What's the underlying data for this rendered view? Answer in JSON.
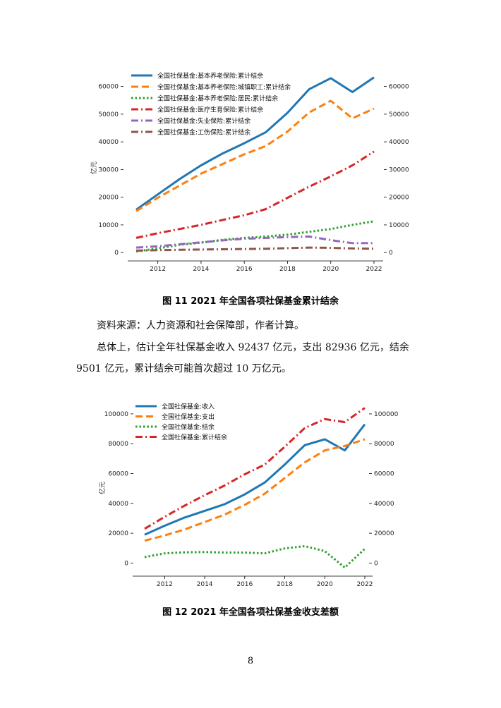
{
  "figures": [
    {
      "caption": "图 11   2021 年全国各项社保基金累计结余",
      "chart_data": {
        "type": "line",
        "ylabel": "亿元",
        "x": [
          2011,
          2012,
          2013,
          2014,
          2015,
          2016,
          2017,
          2018,
          2019,
          2020,
          2021,
          2022
        ],
        "xticks": [
          2012,
          2014,
          2016,
          2018,
          2020,
          2022
        ],
        "yticks": [
          0,
          10000,
          20000,
          30000,
          40000,
          50000,
          60000
        ],
        "ylim": [
          -2500,
          65000
        ],
        "grid": false,
        "legend_position": "top-left",
        "dual_axis_labels": true,
        "series": [
          {
            "name": "全国社保基金:基本养老保险:累计结余",
            "color": "#1f77b4",
            "dash": "solid",
            "values": [
              15500,
              21000,
              26500,
              31500,
              35800,
              39500,
              43500,
              50500,
              59000,
              63000,
              58000,
              63300
            ]
          },
          {
            "name": "全国社保基金:基本养老保险:城镇职工:累计结余",
            "color": "#ff7f0e",
            "dash": "dashed",
            "values": [
              15000,
              19800,
              24200,
              28500,
              32000,
              35500,
              38500,
              43700,
              50600,
              54800,
              48500,
              52000
            ]
          },
          {
            "name": "全国社保基金:基本养老保险:居民:累计结余",
            "color": "#2ca02c",
            "dash": "dotted",
            "values": [
              400,
              1500,
              2800,
              3600,
              4600,
              5300,
              5800,
              6500,
              7500,
              8500,
              10000,
              11300
            ]
          },
          {
            "name": "全国社保基金:医疗生育保险:累计结余",
            "color": "#d62728",
            "dash": "dashdot",
            "values": [
              5300,
              7000,
              8500,
              10000,
              11800,
              13500,
              15700,
              19800,
              23800,
              27500,
              31500,
              36500
            ]
          },
          {
            "name": "全国社保基金:失业保险:累计结余",
            "color": "#9467bd",
            "dash": "dashdot",
            "values": [
              1800,
              2300,
              3000,
              3700,
              4400,
              5000,
              5300,
              5600,
              5800,
              4500,
              3400,
              3400
            ]
          },
          {
            "name": "全国社保基金:工伤保险:累计结余",
            "color": "#8c564b",
            "dash": "dashdot",
            "values": [
              700,
              900,
              1000,
              1100,
              1200,
              1300,
              1400,
              1600,
              1800,
              1700,
              1500,
              1400
            ]
          }
        ]
      }
    },
    {
      "caption": "图 12   2021 年全国各项社保基金收支差额",
      "chart_data": {
        "type": "line",
        "ylabel": "亿元",
        "x": [
          2011,
          2012,
          2013,
          2014,
          2015,
          2016,
          2017,
          2018,
          2019,
          2020,
          2021,
          2022
        ],
        "xticks": [
          2012,
          2014,
          2016,
          2018,
          2020,
          2022
        ],
        "yticks": [
          0,
          20000,
          40000,
          60000,
          80000,
          100000
        ],
        "ylim": [
          -5000,
          108000
        ],
        "grid": false,
        "legend_position": "top-left",
        "dual_axis_labels": true,
        "series": [
          {
            "name": "全国社保基金:收入",
            "color": "#1f77b4",
            "dash": "solid",
            "values": [
              19000,
              25000,
              30500,
              35000,
              39500,
              46000,
              54000,
              66000,
              79000,
              83000,
              75500,
              93000
            ]
          },
          {
            "name": "全国社保基金:支出",
            "color": "#ff7f0e",
            "dash": "dashed",
            "values": [
              15000,
              18500,
              22500,
              27500,
              32500,
              39000,
              46500,
              57000,
              67500,
              75500,
              78500,
              83000
            ]
          },
          {
            "name": "全国社保基金:结余",
            "color": "#2ca02c",
            "dash": "dotted",
            "values": [
              4000,
              6500,
              7200,
              7400,
              7000,
              7000,
              6500,
              9800,
              11300,
              8000,
              -3000,
              9500
            ]
          },
          {
            "name": "全国社保基金:累计结余",
            "color": "#d62728",
            "dash": "dashdot",
            "values": [
              23000,
              31000,
              38500,
              45500,
              52000,
              59500,
              66000,
              78000,
              90500,
              96500,
              94500,
              104000
            ]
          }
        ]
      }
    }
  ],
  "text": {
    "source": "资料来源：人力资源和社会保障部，作者计算。",
    "summary": "总体上，估计全年社保基金收入 92437 亿元，支出 82936 亿元，结余 9501 亿元，累计结余可能首次超过 10 万亿元。",
    "page_number": "8"
  }
}
